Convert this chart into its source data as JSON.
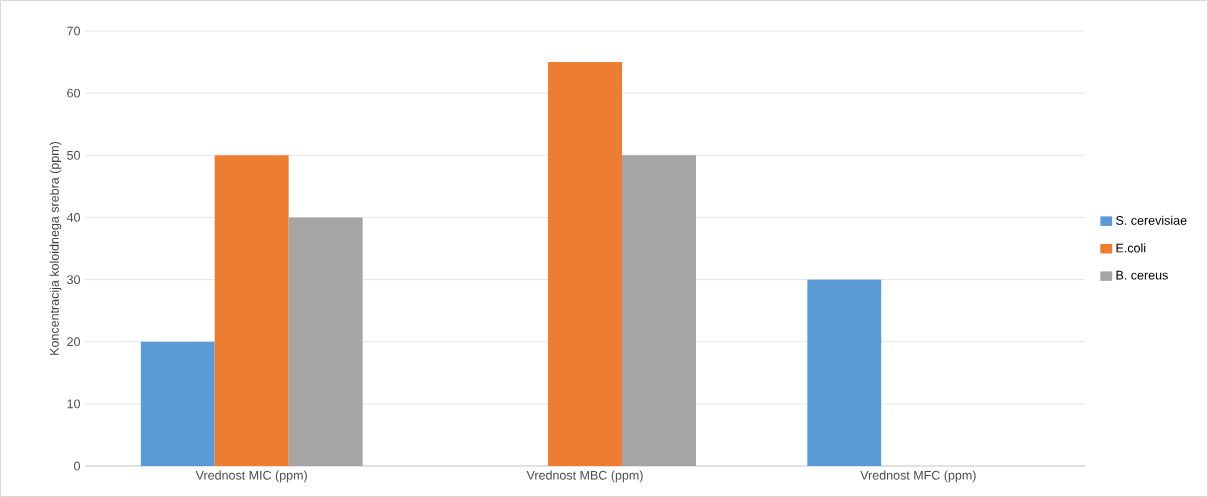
{
  "chart_data": {
    "type": "bar",
    "ylabel": "Koncentracija koloidnega srebra (ppm)",
    "categories": [
      "Vrednost MIC (ppm)",
      "Vrednost MBC (ppm)",
      "Vrednost MFC (ppm)"
    ],
    "series": [
      {
        "name": "S. cerevisiae",
        "color": "#5b9bd5",
        "values": [
          20,
          null,
          30
        ]
      },
      {
        "name": "E.coli",
        "color": "#ed7d31",
        "values": [
          50,
          65,
          null
        ]
      },
      {
        "name": "B. cereus",
        "color": "#a5a5a5",
        "values": [
          40,
          50,
          null
        ]
      }
    ],
    "ylim": [
      0,
      70
    ],
    "yticks": [
      0,
      10,
      20,
      30,
      40,
      50,
      60,
      70
    ],
    "grid": "y",
    "legend": "right"
  }
}
